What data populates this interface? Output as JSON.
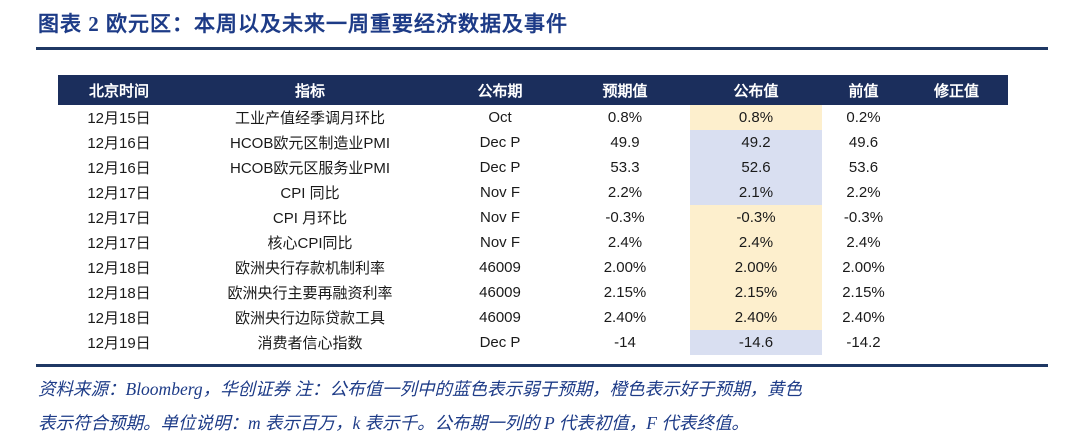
{
  "title": "图表 2  欧元区：本周以及未来一周重要经济数据及事件",
  "colors": {
    "header_bg": "#1B2E5C",
    "rule": "#1F3864",
    "title_text": "#1D3B87",
    "meets_expectation_bg": "#FDEFCD",
    "weaker_than_expected_bg": "#D9DFF1"
  },
  "table": {
    "headers": [
      "北京时间",
      "指标",
      "公布期",
      "预期值",
      "公布值",
      "前值",
      "修正值"
    ],
    "rows": [
      {
        "time": "12月15日",
        "indicator": "工业产值经季调月环比",
        "period": "Oct",
        "expected": "0.8%",
        "announced": "0.8%",
        "announced_status": "yellow",
        "previous": "0.2%",
        "revised": ""
      },
      {
        "time": "12月16日",
        "indicator": "HCOB欧元区制造业PMI",
        "period": "Dec P",
        "expected": "49.9",
        "announced": "49.2",
        "announced_status": "blue",
        "previous": "49.6",
        "revised": ""
      },
      {
        "time": "12月16日",
        "indicator": "HCOB欧元区服务业PMI",
        "period": "Dec P",
        "expected": "53.3",
        "announced": "52.6",
        "announced_status": "blue",
        "previous": "53.6",
        "revised": ""
      },
      {
        "time": "12月17日",
        "indicator": "CPI 同比",
        "period": "Nov F",
        "expected": "2.2%",
        "announced": "2.1%",
        "announced_status": "blue",
        "previous": "2.2%",
        "revised": ""
      },
      {
        "time": "12月17日",
        "indicator": "CPI 月环比",
        "period": "Nov F",
        "expected": "-0.3%",
        "announced": "-0.3%",
        "announced_status": "yellow",
        "previous": "-0.3%",
        "revised": ""
      },
      {
        "time": "12月17日",
        "indicator": "核心CPI同比",
        "period": "Nov F",
        "expected": "2.4%",
        "announced": "2.4%",
        "announced_status": "yellow",
        "previous": "2.4%",
        "revised": ""
      },
      {
        "time": "12月18日",
        "indicator": "欧洲央行存款机制利率",
        "period": "46009",
        "expected": "2.00%",
        "announced": "2.00%",
        "announced_status": "yellow",
        "previous": "2.00%",
        "revised": ""
      },
      {
        "time": "12月18日",
        "indicator": "欧洲央行主要再融资利率",
        "period": "46009",
        "expected": "2.15%",
        "announced": "2.15%",
        "announced_status": "yellow",
        "previous": "2.15%",
        "revised": ""
      },
      {
        "time": "12月18日",
        "indicator": "欧洲央行边际贷款工具",
        "period": "46009",
        "expected": "2.40%",
        "announced": "2.40%",
        "announced_status": "yellow",
        "previous": "2.40%",
        "revised": ""
      },
      {
        "time": "12月19日",
        "indicator": "消费者信心指数",
        "period": "Dec P",
        "expected": "-14",
        "announced": "-14.6",
        "announced_status": "blue",
        "previous": "-14.2",
        "revised": ""
      }
    ]
  },
  "footer": {
    "line1": "资料来源：Bloomberg，华创证券 注：公布值一列中的蓝色表示弱于预期，橙色表示好于预期，黄色",
    "line2": "表示符合预期。单位说明：m 表示百万，k 表示千。公布期一列的 P 代表初值，F 代表终值。"
  }
}
